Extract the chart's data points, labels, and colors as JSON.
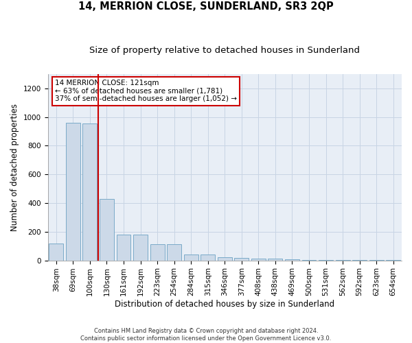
{
  "title": "14, MERRION CLOSE, SUNDERLAND, SR3 2QP",
  "subtitle": "Size of property relative to detached houses in Sunderland",
  "xlabel": "Distribution of detached houses by size in Sunderland",
  "ylabel": "Number of detached properties",
  "footer_line1": "Contains HM Land Registry data © Crown copyright and database right 2024.",
  "footer_line2": "Contains public sector information licensed under the Open Government Licence v3.0.",
  "categories": [
    "38sqm",
    "69sqm",
    "100sqm",
    "130sqm",
    "161sqm",
    "192sqm",
    "223sqm",
    "254sqm",
    "284sqm",
    "315sqm",
    "346sqm",
    "377sqm",
    "408sqm",
    "438sqm",
    "469sqm",
    "500sqm",
    "531sqm",
    "562sqm",
    "592sqm",
    "623sqm",
    "654sqm"
  ],
  "values": [
    120,
    960,
    955,
    430,
    182,
    182,
    115,
    115,
    40,
    40,
    20,
    15,
    11,
    11,
    10,
    5,
    5,
    5,
    5,
    4,
    4
  ],
  "bar_color": "#ccd9e8",
  "bar_edgecolor": "#7aaac8",
  "bar_linewidth": 0.7,
  "red_line_x": 2.5,
  "red_line_color": "#cc0000",
  "annotation_text": "14 MERRION CLOSE: 121sqm\n← 63% of detached houses are smaller (1,781)\n37% of semi-detached houses are larger (1,052) →",
  "annotation_box_color": "#ffffff",
  "annotation_box_edgecolor": "#cc0000",
  "ylim": [
    0,
    1300
  ],
  "yticks": [
    0,
    200,
    400,
    600,
    800,
    1000,
    1200
  ],
  "grid_color": "#c8d4e4",
  "bg_color": "#e8eef6",
  "title_fontsize": 10.5,
  "subtitle_fontsize": 9.5,
  "xlabel_fontsize": 8.5,
  "ylabel_fontsize": 8.5,
  "tick_fontsize": 7.5,
  "annot_fontsize": 7.5
}
